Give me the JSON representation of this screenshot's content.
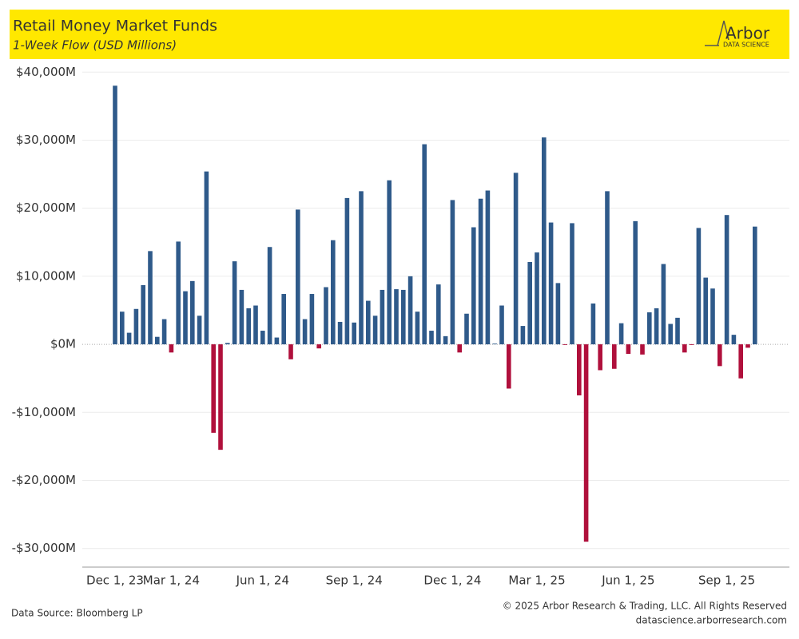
{
  "chart_data": {
    "type": "bar",
    "title": "Retail Money Market Funds",
    "subtitle": "1-Week Flow (USD Millions)",
    "logo": {
      "name": "Arbor",
      "tagline": "DATA SCIENCE"
    },
    "source": "Data Source: Bloomberg LP",
    "copyright": "© 2025 Arbor Research & Trading, LLC. All Rights Reserved",
    "website": "datascience.arborresearch.com",
    "categories": [
      "Dec 1, 23",
      null,
      null,
      null,
      null,
      null,
      null,
      null,
      "Mar 1, 24",
      null,
      null,
      null,
      null,
      null,
      null,
      null,
      null,
      null,
      null,
      null,
      null,
      "Jun 1, 24",
      null,
      null,
      null,
      null,
      null,
      null,
      null,
      null,
      null,
      null,
      null,
      null,
      "Sep 1, 24",
      null,
      null,
      null,
      null,
      null,
      null,
      null,
      null,
      null,
      null,
      null,
      null,
      null,
      "Dec 1, 24",
      null,
      null,
      null,
      null,
      null,
      null,
      null,
      null,
      null,
      null,
      null,
      "Mar 1, 25",
      null,
      null,
      null,
      null,
      null,
      null,
      null,
      null,
      null,
      null,
      null,
      null,
      "Jun 1, 25",
      null,
      null,
      null,
      null,
      null,
      null,
      null,
      null,
      null,
      null,
      null,
      null,
      null,
      "Sep 1, 25",
      null,
      null,
      null,
      null
    ],
    "values": [
      38000,
      4800,
      1700,
      5200,
      8700,
      13700,
      1100,
      3700,
      -1200,
      15100,
      7800,
      9300,
      4200,
      25400,
      -13000,
      -15500,
      200,
      12200,
      8000,
      5300,
      5700,
      2000,
      14300,
      1000,
      7400,
      -2200,
      19800,
      3700,
      7400,
      -600,
      8400,
      15300,
      3300,
      21500,
      3200,
      22500,
      6400,
      4200,
      8000,
      24100,
      8100,
      8000,
      10000,
      4800,
      29400,
      2000,
      8800,
      1200,
      21200,
      -1200,
      4500,
      17200,
      21400,
      22600,
      100,
      5700,
      -6500,
      25200,
      2700,
      12100,
      13500,
      30400,
      17900,
      9000,
      -100,
      17800,
      -7500,
      -29000,
      6000,
      -3800,
      22500,
      -3600,
      3100,
      -1400,
      18100,
      -1500,
      4700,
      5300,
      11800,
      3000,
      3900,
      -1200,
      -100,
      17100,
      9800,
      8200,
      -3200,
      19000,
      1400,
      -5000,
      -500,
      17300
    ],
    "color": "#2f5a8a",
    "negative_color": "#b0103c",
    "ylim": [
      -32500,
      40500
    ],
    "yticks": [
      {
        "value": -30000,
        "label": "-$30,000M"
      },
      {
        "value": -20000,
        "label": "-$20,000M"
      },
      {
        "value": -10000,
        "label": "-$10,000M"
      },
      {
        "value": 0,
        "label": "$0M"
      },
      {
        "value": 10000,
        "label": "$10,000M"
      },
      {
        "value": 20000,
        "label": "$20,000M"
      },
      {
        "value": 30000,
        "label": "$30,000M"
      },
      {
        "value": 40000,
        "label": "$40,000M"
      }
    ],
    "grid": true
  }
}
